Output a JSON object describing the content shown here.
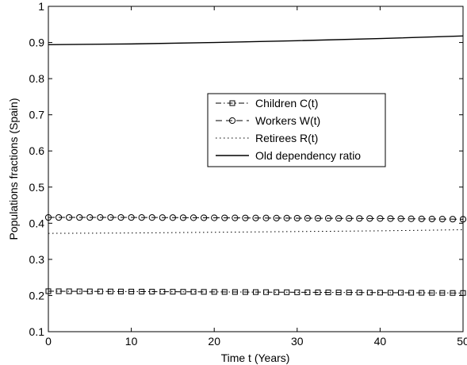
{
  "chart_data": {
    "type": "line",
    "xlabel": "Time t (Years)",
    "ylabel": "Populations fractions (Spain)",
    "xlim": [
      0,
      50
    ],
    "ylim": [
      0.1,
      1
    ],
    "xticks": [
      0,
      10,
      20,
      30,
      40,
      50
    ],
    "yticks": [
      0.1,
      0.2,
      0.3,
      0.4,
      0.5,
      0.6,
      0.7,
      0.8,
      0.9,
      1
    ],
    "ytick_labels": [
      "0.1",
      "0.2",
      "0.3",
      "0.4",
      "0.5",
      "0.6",
      "0.7",
      "0.8",
      "0.9",
      "1"
    ],
    "grid": false,
    "legend_position": "center-right",
    "x": [
      0,
      10,
      20,
      30,
      40,
      50
    ],
    "series": [
      {
        "name": "Children C(t)",
        "style": "dashdot",
        "marker": "square",
        "color": "#000000",
        "values": [
          0.212,
          0.211,
          0.21,
          0.209,
          0.208,
          0.207
        ]
      },
      {
        "name": "Workers W(t)",
        "style": "dashed",
        "marker": "circle",
        "color": "#000000",
        "values": [
          0.416,
          0.416,
          0.415,
          0.414,
          0.413,
          0.411
        ]
      },
      {
        "name": "Retirees R(t)",
        "style": "dotted",
        "marker": "none",
        "color": "#000000",
        "values": [
          0.372,
          0.373,
          0.375,
          0.377,
          0.379,
          0.382
        ]
      },
      {
        "name": "Old dependency ratio",
        "style": "solid",
        "marker": "none",
        "color": "#000000",
        "values": [
          0.894,
          0.896,
          0.9,
          0.905,
          0.911,
          0.918
        ]
      }
    ]
  }
}
